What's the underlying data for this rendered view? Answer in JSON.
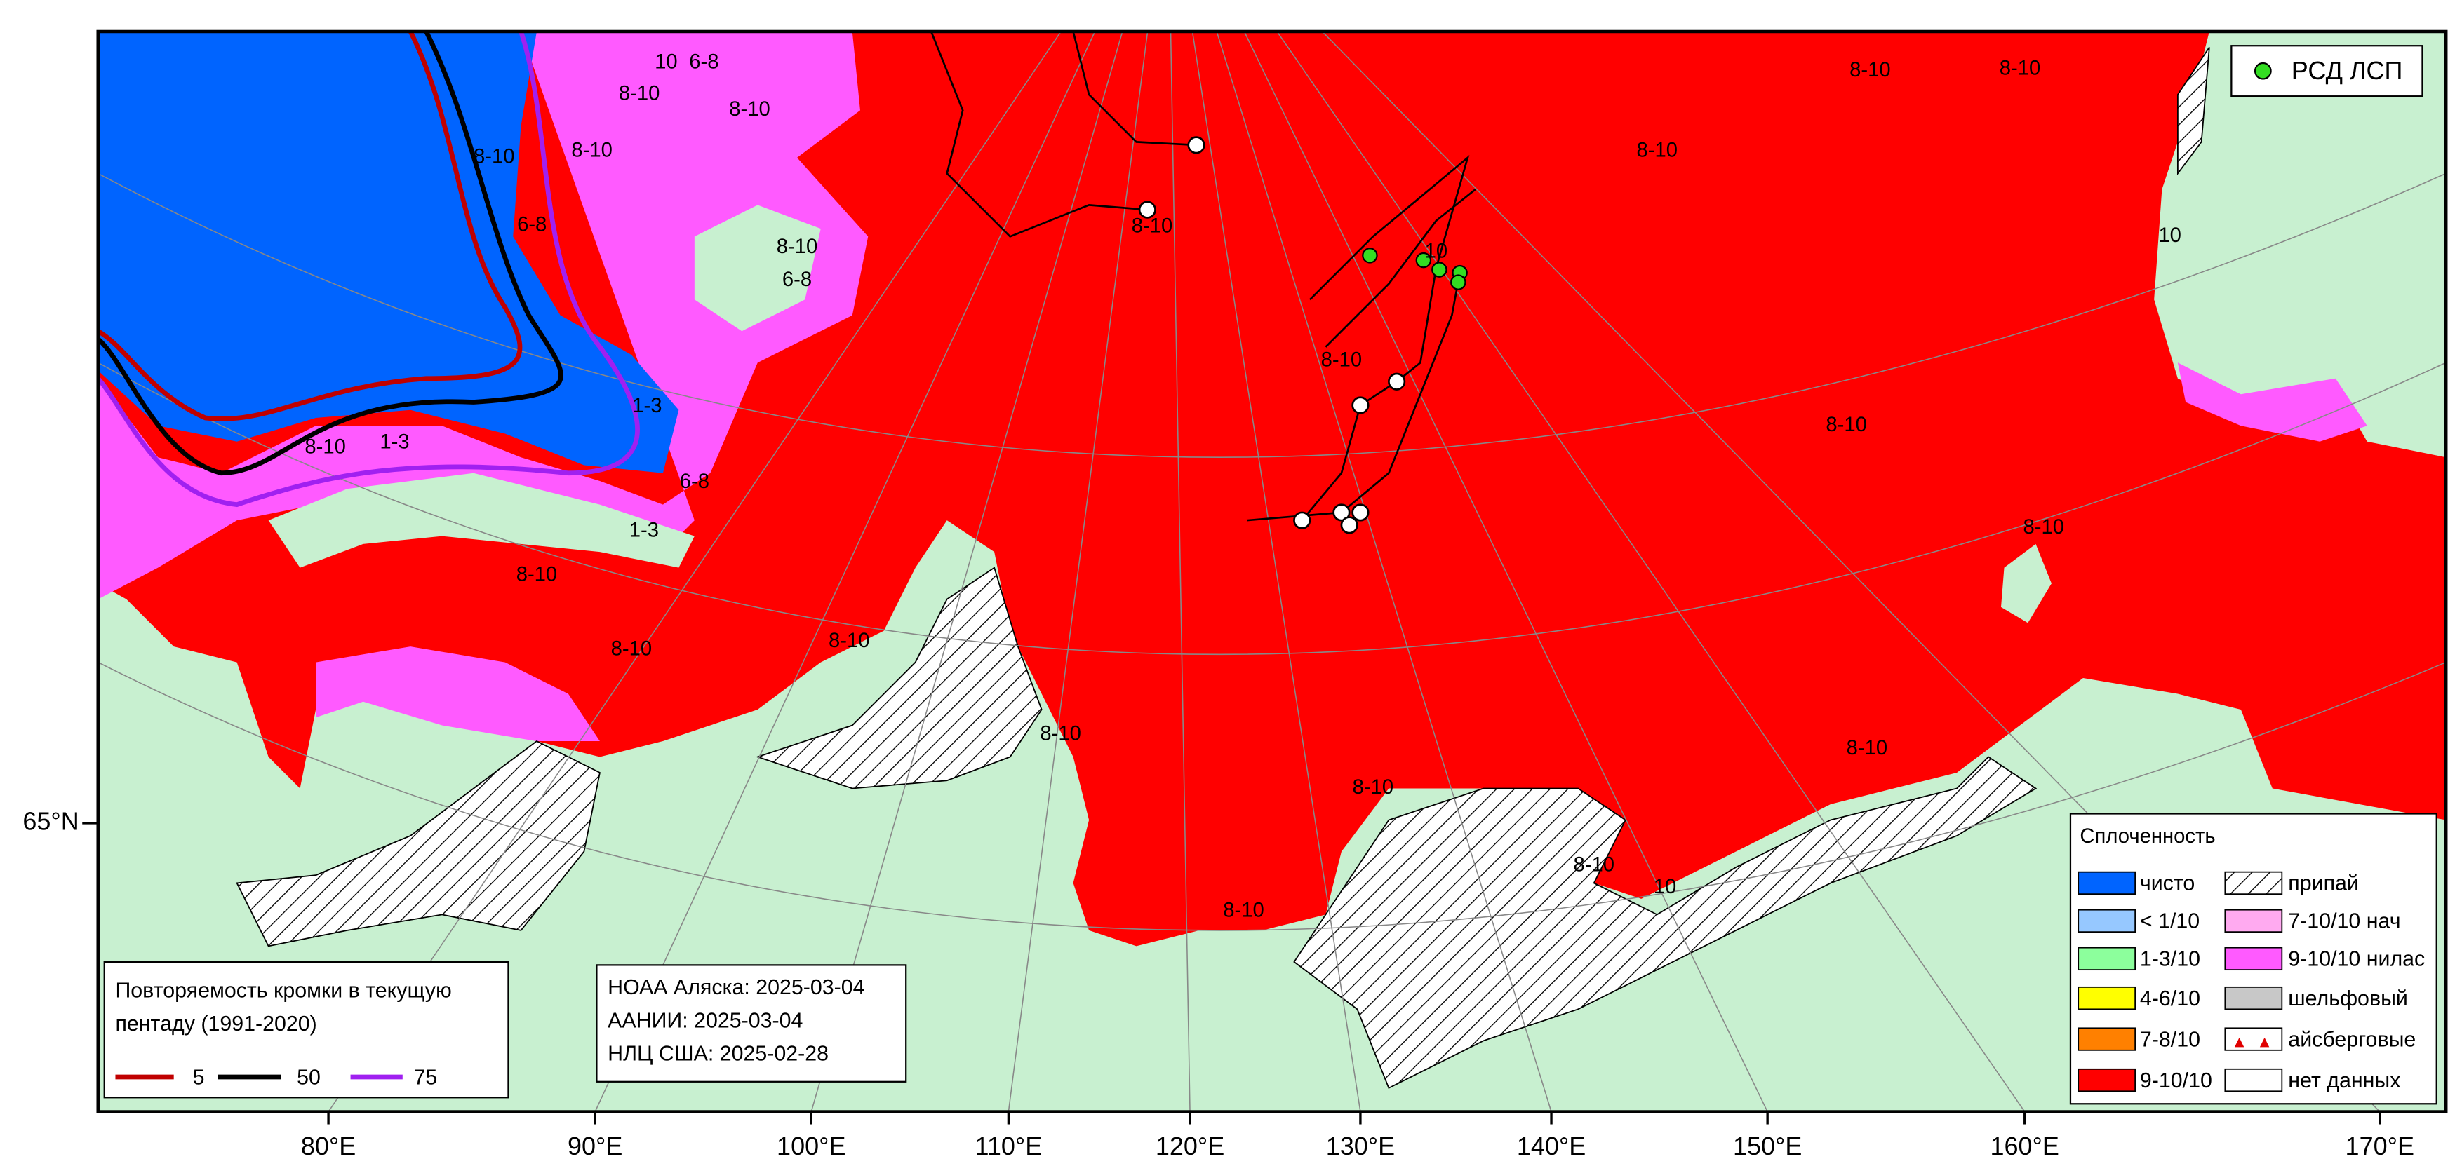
{
  "map": {
    "latitude_labels": [
      "65°N"
    ],
    "longitude_labels": [
      "80°E",
      "90°E",
      "100°E",
      "110°E",
      "120°E",
      "130°E",
      "140°E",
      "150°E",
      "160°E",
      "170°E"
    ],
    "ice_labels": [
      "8-10",
      "8-10",
      "6-8",
      "8-10",
      "10",
      "6-8",
      "8-10",
      "8-10",
      "6-8",
      "1-3",
      "6-8",
      "1-3",
      "8-10",
      "1-3",
      "8-10",
      "8-10",
      "8-10",
      "8-10",
      "8-10",
      "8-10",
      "8-10",
      "8-10",
      "8-10",
      "8-10",
      "8-10",
      "8-10",
      "8-10",
      "8-10",
      "8-10",
      "10",
      "10",
      "10"
    ],
    "drift_legend": {
      "label": "РСД ЛСП",
      "color": "#33dd22"
    },
    "edge_legend": {
      "title_lines": [
        "Повторяемость кромки в текущую",
        "пентаду (1991-2020)"
      ],
      "lines": [
        {
          "value": 5,
          "color": "#c00000"
        },
        {
          "value": 50,
          "color": "#000000"
        },
        {
          "value": 75,
          "color": "#a020f0"
        }
      ]
    },
    "sources": [
      "НОАА Аляска: 2025-03-04",
      "ААНИИ: 2025-03-04",
      "НЛЦ США: 2025-02-28"
    ],
    "concentration_legend": {
      "title": "Сплоченность",
      "items": [
        {
          "label": "чисто",
          "color": "#0064ff"
        },
        {
          "label": "< 1/10",
          "color": "#96c8ff"
        },
        {
          "label": "1-3/10",
          "color": "#8cff9c"
        },
        {
          "label": "4-6/10",
          "color": "#ffff00"
        },
        {
          "label": "7-8/10",
          "color": "#ff8000"
        },
        {
          "label": "9-10/10",
          "color": "#ff0000"
        },
        {
          "label": "припай",
          "color": "#ffffff",
          "hatch": true
        },
        {
          "label": "7-10/10 нач",
          "color": "#ffaaf0"
        },
        {
          "label": "9-10/10 нилас",
          "color": "#ff5aff"
        },
        {
          "label": "шельфовый",
          "color": "#c8c8c8"
        },
        {
          "label": "айсберговые",
          "color": "#ffffff",
          "icebergs": true
        },
        {
          "label": "нет данных",
          "color": "#ffffff"
        }
      ]
    }
  }
}
